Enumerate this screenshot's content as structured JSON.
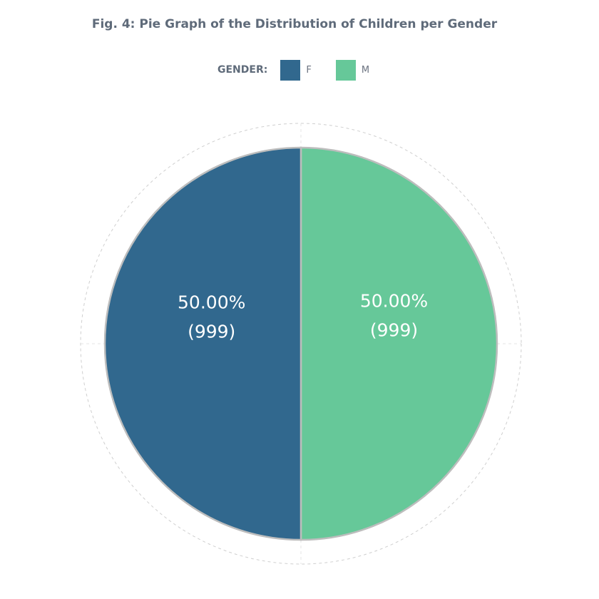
{
  "chart_data": {
    "type": "pie",
    "title": "Fig. 4: Pie Graph of the Distribution of Children per Gender",
    "legend_title": "GENDER:",
    "legend_position": "top",
    "categories": [
      "F",
      "M"
    ],
    "values": [
      999,
      999
    ],
    "percent_labels": [
      "50.00%",
      "50.00%"
    ],
    "count_labels": [
      "(999)",
      "(999)"
    ],
    "colors": [
      "#31688e",
      "#66c899"
    ]
  }
}
